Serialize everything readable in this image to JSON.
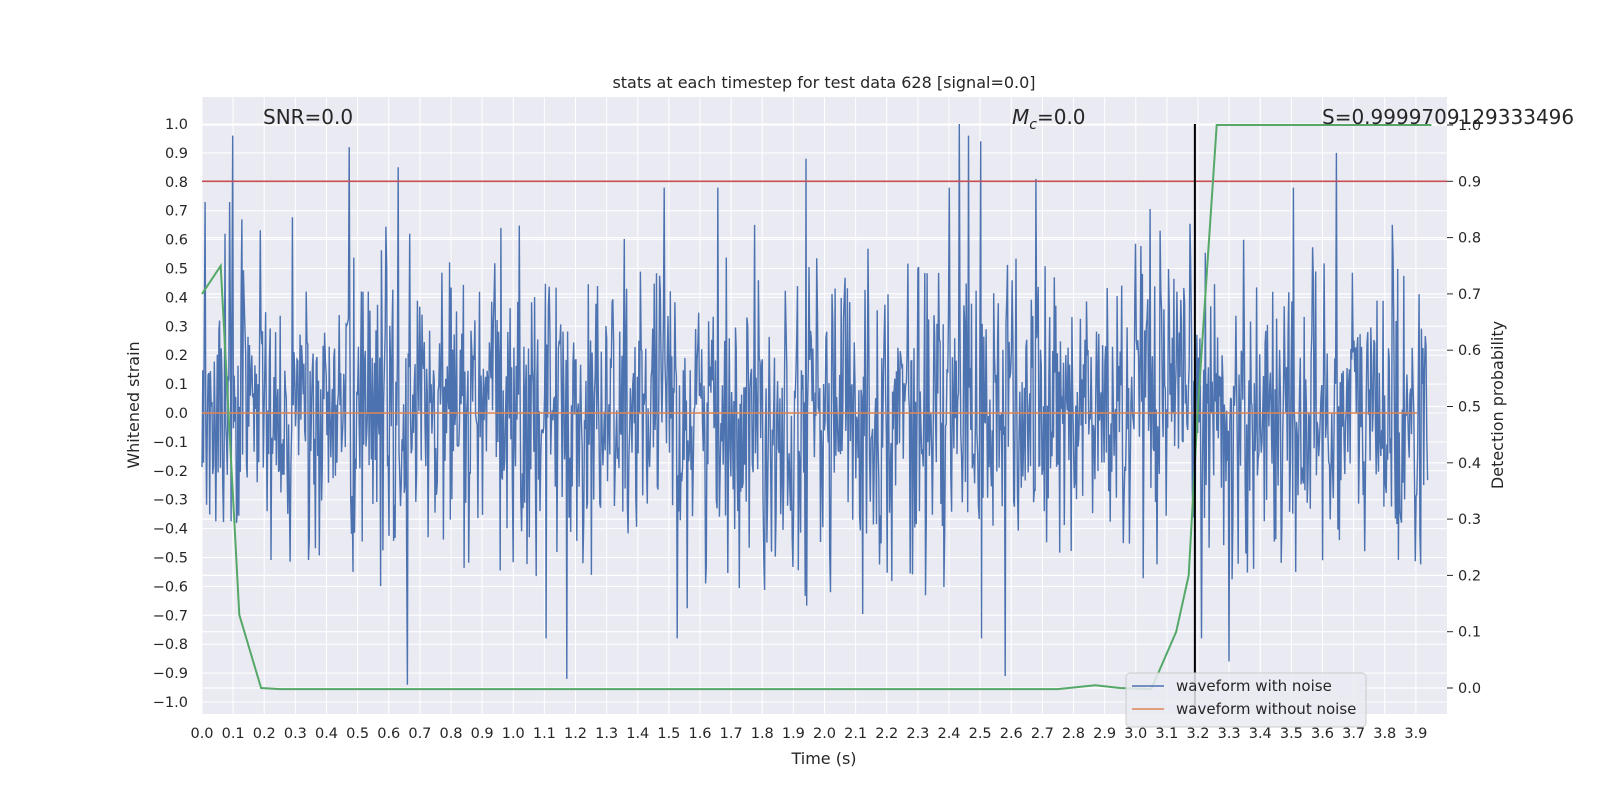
{
  "chart_data": {
    "type": "line",
    "title": "stats at each timestep for test data 628 [signal=0.0]",
    "xlabel": "Time (s)",
    "ylabel": "Whitened strain",
    "y2label": "Detection probability",
    "xlim": [
      0.0,
      4.0
    ],
    "ylim": [
      -1.05,
      1.1
    ],
    "y2lim": [
      -0.05,
      1.05
    ],
    "x_ticks": [
      "0.0",
      "0.1",
      "0.2",
      "0.3",
      "0.4",
      "0.5",
      "0.6",
      "0.7",
      "0.8",
      "0.9",
      "1.0",
      "1.1",
      "1.2",
      "1.3",
      "1.4",
      "1.5",
      "1.6",
      "1.7",
      "1.8",
      "1.9",
      "2.0",
      "2.1",
      "2.2",
      "2.3",
      "2.4",
      "2.5",
      "2.6",
      "2.7",
      "2.8",
      "2.9",
      "3.0",
      "3.1",
      "3.2",
      "3.3",
      "3.4",
      "3.5",
      "3.6",
      "3.7",
      "3.8",
      "3.9"
    ],
    "y_ticks": [
      "1.0",
      "0.9",
      "0.8",
      "0.7",
      "0.6",
      "0.5",
      "0.4",
      "0.3",
      "0.2",
      "0.1",
      "0.0",
      "−0.1",
      "−0.2",
      "−0.3",
      "−0.4",
      "−0.5",
      "−0.6",
      "−0.7",
      "−0.8",
      "−0.9",
      "−1.0"
    ],
    "y2_ticks": [
      "1.0",
      "0.9",
      "0.8",
      "0.7",
      "0.6",
      "0.5",
      "0.4",
      "0.3",
      "0.2",
      "0.1",
      "0.0"
    ],
    "grid": true,
    "legend_placement": "bottom-right",
    "annotations": {
      "snr": "SNR=0.0",
      "mc_base": "M",
      "mc_sub": "c",
      "mc_value": "=0.0",
      "s": "S=0.9999709129333496"
    },
    "threshold_line": {
      "value": 0.9,
      "axis": "y2",
      "color": "#c44e52"
    },
    "vertical_line": {
      "x": 3.19,
      "color": "#000000"
    },
    "series": [
      {
        "name": "waveform with noise",
        "color": "#4c72b0",
        "description_of_values": "noisy whitened strain sampled across 0.0–4.0 s, mostly within ±0.6 with spikes up to about ±1.0",
        "peaks": [
          [
            0.01,
            0.73
          ],
          [
            0.09,
            0.73
          ],
          [
            0.1,
            0.96
          ],
          [
            0.13,
            0.67
          ],
          [
            0.48,
            0.92
          ],
          [
            0.64,
            0.85
          ],
          [
            0.67,
            -0.94
          ],
          [
            1.55,
            -0.78
          ],
          [
            1.19,
            -0.92
          ],
          [
            1.97,
            0.88
          ],
          [
            2.47,
            1.0
          ],
          [
            2.5,
            0.96
          ],
          [
            2.54,
            0.94
          ],
          [
            2.62,
            -0.91
          ],
          [
            2.72,
            0.81
          ],
          [
            3.7,
            0.9
          ],
          [
            3.35,
            -0.86
          ]
        ]
      },
      {
        "name": "waveform without noise",
        "color": "#dd8452",
        "x": [
          0.0,
          4.0
        ],
        "y": [
          0.0,
          0.0
        ]
      },
      {
        "name": "Detection probability",
        "axis": "y2",
        "color": "#55a868",
        "x": [
          0.0,
          0.06,
          0.12,
          0.19,
          0.25,
          0.5,
          1.0,
          1.5,
          2.0,
          2.5,
          2.75,
          2.87,
          2.95,
          3.05,
          3.13,
          3.17,
          3.2,
          3.23,
          3.26,
          3.5,
          3.95
        ],
        "y": [
          0.7,
          0.75,
          0.13,
          0.0,
          -0.002,
          -0.002,
          -0.002,
          -0.002,
          -0.002,
          -0.002,
          -0.002,
          0.005,
          0.0,
          -0.002,
          0.1,
          0.2,
          0.5,
          0.75,
          1.0,
          1.0,
          1.0
        ]
      }
    ]
  }
}
